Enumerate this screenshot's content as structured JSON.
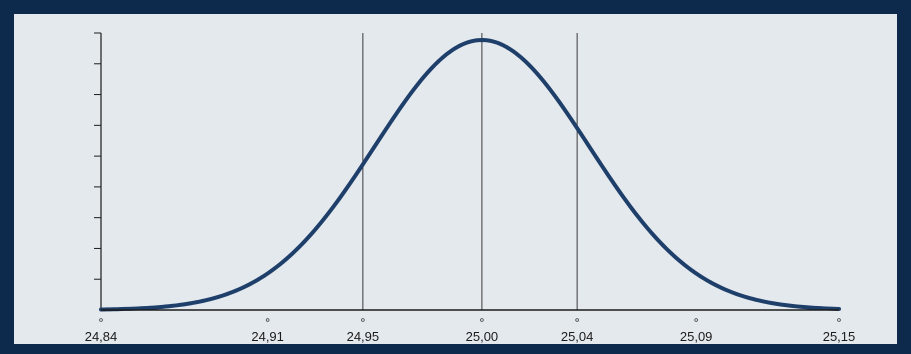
{
  "chart_data": {
    "type": "line",
    "title": "",
    "xlabel": "",
    "ylabel": "",
    "x_tick_values": [
      24.84,
      24.91,
      24.95,
      25.0,
      25.04,
      25.09,
      25.15
    ],
    "x_tick_labels": [
      "24,84",
      "24,91",
      "24,95",
      "25,00",
      "25,04",
      "25,09",
      "25,15"
    ],
    "xlim": [
      24.84,
      25.15
    ],
    "ylim": [
      0,
      1
    ],
    "y_tick_count": 9,
    "vertical_lines": [
      24.95,
      25.0,
      25.04
    ],
    "distribution": {
      "kind": "normal",
      "mean": 25.0,
      "sd": 0.045
    },
    "grid": false,
    "legend": "none",
    "colors": {
      "curve": "#1f3f6b",
      "axis": "#1b1b1b",
      "background": "#e4e9ee",
      "border": "#0d2a4d"
    }
  }
}
